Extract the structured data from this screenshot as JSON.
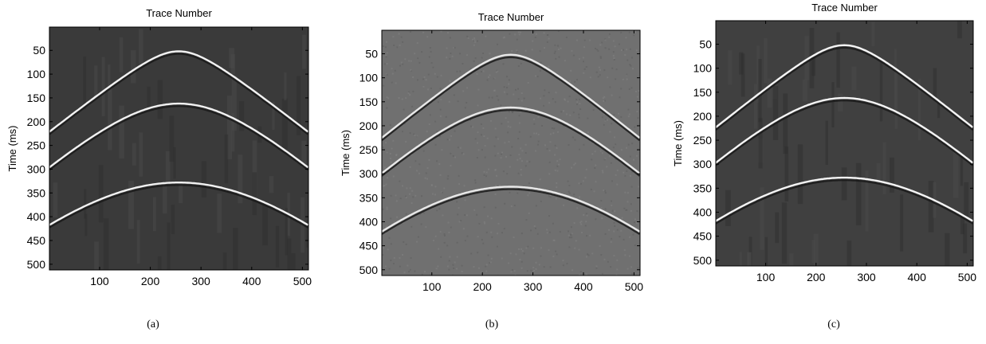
{
  "chart_data": [
    {
      "type": "heatmap",
      "title": "Trace Number",
      "ylabel": "Time (ms)",
      "xlabel": "",
      "caption": "(a)",
      "xlim": [
        1,
        512
      ],
      "ylim": [
        512,
        1
      ],
      "xticks": [
        100,
        200,
        300,
        400,
        500
      ],
      "yticks": [
        50,
        100,
        150,
        200,
        250,
        300,
        350,
        400,
        450,
        500
      ],
      "background_color": "#3a3a3a",
      "event_color": "#f2f2f2",
      "events": [
        {
          "apex_trace": 256,
          "apex_time": 52,
          "edge_time": 222
        },
        {
          "apex_trace": 256,
          "apex_time": 162,
          "edge_time": 297
        },
        {
          "apex_trace": 256,
          "apex_time": 328,
          "edge_time": 418
        }
      ]
    },
    {
      "type": "heatmap",
      "title": "Trace Number",
      "ylabel": "Time (ms)",
      "xlabel": "",
      "caption": "(b)",
      "xlim": [
        1,
        512
      ],
      "ylim": [
        512,
        1
      ],
      "xticks": [
        100,
        200,
        300,
        400,
        500
      ],
      "yticks": [
        50,
        100,
        150,
        200,
        250,
        300,
        350,
        400,
        450,
        500
      ],
      "background_color": "#707070",
      "event_color": "#e8e8e8",
      "events": [
        {
          "apex_trace": 256,
          "apex_time": 52,
          "edge_time": 226
        },
        {
          "apex_trace": 256,
          "apex_time": 162,
          "edge_time": 300
        },
        {
          "apex_trace": 256,
          "apex_time": 327,
          "edge_time": 421
        }
      ]
    },
    {
      "type": "heatmap",
      "title": "Trace Number",
      "ylabel": "Time (ms)",
      "xlabel": "",
      "caption": "(c)",
      "xlim": [
        1,
        512
      ],
      "ylim": [
        512,
        1
      ],
      "xticks": [
        100,
        200,
        300,
        400,
        500
      ],
      "yticks": [
        50,
        100,
        150,
        200,
        250,
        300,
        350,
        400,
        450,
        500
      ],
      "background_color": "#404040",
      "event_color": "#f4f4f4",
      "events": [
        {
          "apex_trace": 256,
          "apex_time": 52,
          "edge_time": 224
        },
        {
          "apex_trace": 256,
          "apex_time": 162,
          "edge_time": 298
        },
        {
          "apex_trace": 256,
          "apex_time": 328,
          "edge_time": 419
        }
      ]
    }
  ]
}
